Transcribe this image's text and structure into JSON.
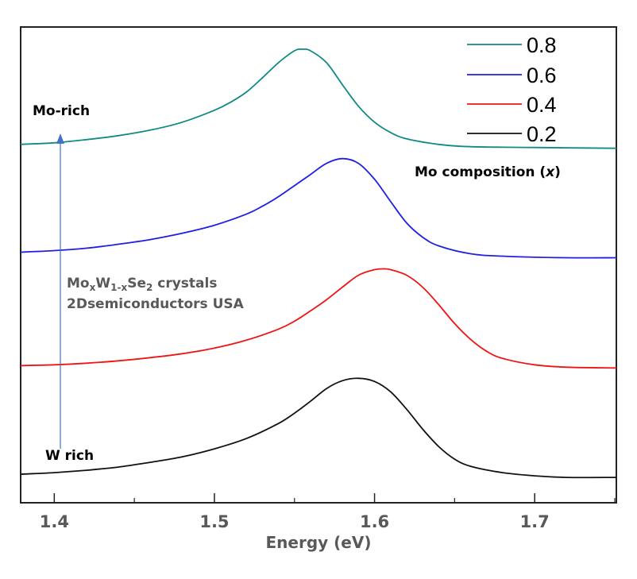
{
  "chart_data": {
    "type": "line",
    "title": "",
    "xlabel": "Energy (eV)",
    "ylabel": "",
    "xlim": [
      1.379,
      1.751
    ],
    "ylim": [
      0,
      6
    ],
    "x_ticks": [
      1.4,
      1.5,
      1.6,
      1.7
    ],
    "x_tick_labels": [
      "1.4",
      "1.5",
      "1.6",
      "1.7"
    ],
    "x_minor_ticks": [
      1.45,
      1.55,
      1.65,
      1.75
    ],
    "y_ticks_visible": false,
    "grid": false,
    "legend": {
      "placement": "top-right",
      "entries": [
        "0.8",
        "0.6",
        "0.4",
        "0.2"
      ]
    },
    "series": [
      {
        "name": "0.8",
        "color": "#118a82",
        "peak_energy": 1.555,
        "points": [
          [
            1.379,
            4.52
          ],
          [
            1.4,
            4.54
          ],
          [
            1.42,
            4.58
          ],
          [
            1.44,
            4.63
          ],
          [
            1.46,
            4.7
          ],
          [
            1.48,
            4.8
          ],
          [
            1.5,
            4.95
          ],
          [
            1.51,
            5.05
          ],
          [
            1.52,
            5.18
          ],
          [
            1.53,
            5.36
          ],
          [
            1.54,
            5.55
          ],
          [
            1.55,
            5.7
          ],
          [
            1.555,
            5.72
          ],
          [
            1.56,
            5.7
          ],
          [
            1.57,
            5.55
          ],
          [
            1.58,
            5.27
          ],
          [
            1.59,
            5.0
          ],
          [
            1.6,
            4.8
          ],
          [
            1.61,
            4.67
          ],
          [
            1.62,
            4.59
          ],
          [
            1.64,
            4.52
          ],
          [
            1.66,
            4.49
          ],
          [
            1.7,
            4.48
          ],
          [
            1.751,
            4.47
          ]
        ]
      },
      {
        "name": "0.6",
        "color": "#1f1fe6",
        "peak_energy": 1.58,
        "points": [
          [
            1.379,
            3.16
          ],
          [
            1.4,
            3.18
          ],
          [
            1.42,
            3.21
          ],
          [
            1.44,
            3.26
          ],
          [
            1.46,
            3.32
          ],
          [
            1.48,
            3.4
          ],
          [
            1.5,
            3.5
          ],
          [
            1.52,
            3.64
          ],
          [
            1.53,
            3.74
          ],
          [
            1.54,
            3.86
          ],
          [
            1.55,
            4.0
          ],
          [
            1.56,
            4.14
          ],
          [
            1.57,
            4.28
          ],
          [
            1.58,
            4.34
          ],
          [
            1.59,
            4.28
          ],
          [
            1.6,
            4.08
          ],
          [
            1.61,
            3.8
          ],
          [
            1.62,
            3.53
          ],
          [
            1.63,
            3.35
          ],
          [
            1.64,
            3.24
          ],
          [
            1.66,
            3.14
          ],
          [
            1.68,
            3.11
          ],
          [
            1.72,
            3.09
          ],
          [
            1.751,
            3.09
          ]
        ]
      },
      {
        "name": "0.4",
        "color": "#f01414",
        "peak_energy": 1.606,
        "points": [
          [
            1.379,
            1.73
          ],
          [
            1.4,
            1.74
          ],
          [
            1.42,
            1.76
          ],
          [
            1.44,
            1.79
          ],
          [
            1.46,
            1.83
          ],
          [
            1.48,
            1.88
          ],
          [
            1.5,
            1.95
          ],
          [
            1.52,
            2.05
          ],
          [
            1.54,
            2.19
          ],
          [
            1.55,
            2.29
          ],
          [
            1.56,
            2.42
          ],
          [
            1.57,
            2.56
          ],
          [
            1.58,
            2.72
          ],
          [
            1.59,
            2.87
          ],
          [
            1.6,
            2.94
          ],
          [
            1.606,
            2.95
          ],
          [
            1.61,
            2.94
          ],
          [
            1.62,
            2.87
          ],
          [
            1.63,
            2.72
          ],
          [
            1.64,
            2.5
          ],
          [
            1.65,
            2.26
          ],
          [
            1.66,
            2.06
          ],
          [
            1.67,
            1.91
          ],
          [
            1.68,
            1.82
          ],
          [
            1.7,
            1.74
          ],
          [
            1.72,
            1.71
          ],
          [
            1.751,
            1.7
          ]
        ]
      },
      {
        "name": "0.2",
        "color": "#111111",
        "peak_energy": 1.59,
        "points": [
          [
            1.379,
            0.36
          ],
          [
            1.4,
            0.38
          ],
          [
            1.42,
            0.41
          ],
          [
            1.44,
            0.45
          ],
          [
            1.46,
            0.51
          ],
          [
            1.48,
            0.58
          ],
          [
            1.5,
            0.68
          ],
          [
            1.52,
            0.81
          ],
          [
            1.54,
            1.0
          ],
          [
            1.55,
            1.13
          ],
          [
            1.56,
            1.28
          ],
          [
            1.57,
            1.44
          ],
          [
            1.58,
            1.54
          ],
          [
            1.59,
            1.57
          ],
          [
            1.6,
            1.53
          ],
          [
            1.61,
            1.4
          ],
          [
            1.62,
            1.18
          ],
          [
            1.63,
            0.93
          ],
          [
            1.64,
            0.71
          ],
          [
            1.65,
            0.55
          ],
          [
            1.66,
            0.46
          ],
          [
            1.68,
            0.38
          ],
          [
            1.7,
            0.34
          ],
          [
            1.72,
            0.32
          ],
          [
            1.751,
            0.32
          ]
        ]
      }
    ],
    "annotations": [
      {
        "id": "mo-rich",
        "text": "Mo-rich"
      },
      {
        "id": "w-rich",
        "text": "W rich"
      },
      {
        "id": "mo-composition",
        "text": "Mo composition (",
        "italic": "x",
        "suffix": ")"
      },
      {
        "id": "sample-line1",
        "parts": [
          "Mo",
          "x",
          "W",
          "1-x",
          "Se",
          "2",
          " crystals"
        ]
      },
      {
        "id": "sample-line2",
        "text": "2Dsemiconductors USA"
      }
    ],
    "arrow": {
      "from_label": "W rich",
      "to_label": "Mo-rich",
      "color": "#4472c4"
    }
  }
}
